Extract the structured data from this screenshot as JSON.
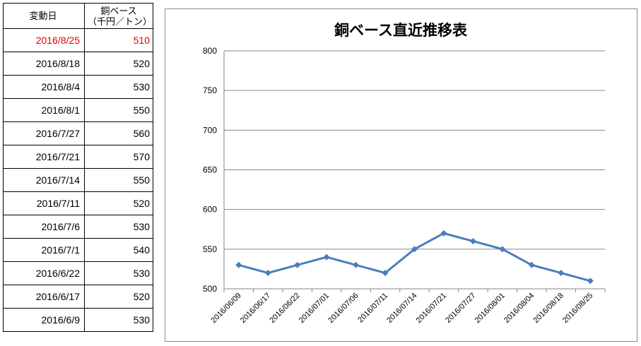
{
  "table": {
    "headers": [
      "変動日",
      "銅ベース",
      "（千円／トン）"
    ],
    "rows": [
      {
        "date": "2016/8/25",
        "price": "510",
        "highlight": true
      },
      {
        "date": "2016/8/18",
        "price": "520"
      },
      {
        "date": "2016/8/4",
        "price": "530"
      },
      {
        "date": "2016/8/1",
        "price": "550"
      },
      {
        "date": "2016/7/27",
        "price": "560"
      },
      {
        "date": "2016/7/21",
        "price": "570"
      },
      {
        "date": "2016/7/14",
        "price": "550"
      },
      {
        "date": "2016/7/11",
        "price": "520"
      },
      {
        "date": "2016/7/6",
        "price": "530"
      },
      {
        "date": "2016/7/1",
        "price": "540"
      },
      {
        "date": "2016/6/22",
        "price": "530"
      },
      {
        "date": "2016/6/17",
        "price": "520"
      },
      {
        "date": "2016/6/9",
        "price": "530"
      }
    ],
    "highlight_color": "#e00000"
  },
  "chart_data": {
    "type": "line",
    "title": "銅ベース直近推移表",
    "categories": [
      "2016/06/09",
      "2016/06/17",
      "2016/06/22",
      "2016/07/01",
      "2016/07/06",
      "2016/07/11",
      "2016/07/14",
      "2016/07/21",
      "2016/07/27",
      "2016/08/01",
      "2016/08/04",
      "2016/08/18",
      "2016/08/25"
    ],
    "series": [
      {
        "values": [
          530,
          520,
          530,
          540,
          530,
          520,
          550,
          570,
          560,
          550,
          530,
          520,
          510
        ],
        "color": "#4a7ebb",
        "marker": "diamond"
      }
    ],
    "ylim": [
      500,
      800
    ],
    "yticks": [
      500,
      550,
      600,
      650,
      700,
      750,
      800
    ],
    "grid": true,
    "xlabel": "",
    "ylabel": ""
  }
}
